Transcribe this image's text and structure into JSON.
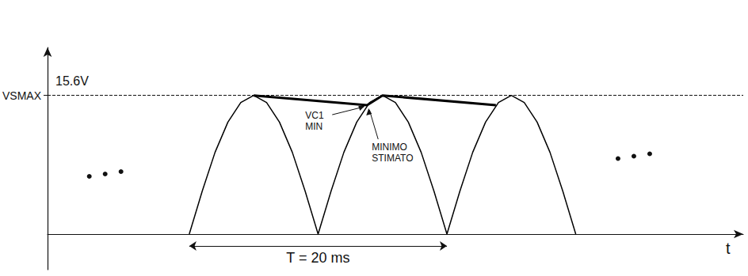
{
  "chart_data": {
    "type": "line",
    "xlabel": "t",
    "xlim": [
      0,
      54
    ],
    "ylim": [
      -4,
      21
    ],
    "yticks": [
      {
        "value": 15.6,
        "label": "VSMAX"
      }
    ],
    "tick_labels": "y",
    "grid": false,
    "series": [
      {
        "x": [
          11,
          12,
          13,
          14,
          15,
          16,
          17,
          18,
          19,
          20,
          21,
          22,
          23,
          24,
          25,
          26,
          27,
          28,
          29,
          30,
          31,
          32,
          33,
          34,
          35,
          36,
          37,
          38,
          39,
          40,
          41
        ],
        "values": [
          0,
          4.8,
          9.2,
          12.6,
          14.8,
          15.6,
          14.8,
          12.6,
          9.2,
          4.8,
          0,
          4.8,
          9.2,
          12.6,
          14.8,
          15.6,
          14.8,
          12.6,
          9.2,
          4.8,
          0,
          4.8,
          9.2,
          12.6,
          14.8,
          15.6,
          14.8,
          12.6,
          9.2,
          4.8,
          0
        ],
        "color": "#000000",
        "line_style": "solid"
      },
      {
        "x": [
          16,
          24.8,
          26,
          34.8
        ],
        "values": [
          15.6,
          14.5,
          15.6,
          14.5
        ],
        "color": "#000000",
        "line_style": "thick"
      }
    ],
    "reference_line": {
      "value": 15.6,
      "label": "15.6V",
      "line_style": "dashed"
    },
    "period": {
      "start": 11,
      "end": 31,
      "label": "T = 20 ms"
    },
    "annotations": [
      {
        "text": "VC1 MIN"
      },
      {
        "text": "MINIMO STIMATO"
      }
    ]
  }
}
